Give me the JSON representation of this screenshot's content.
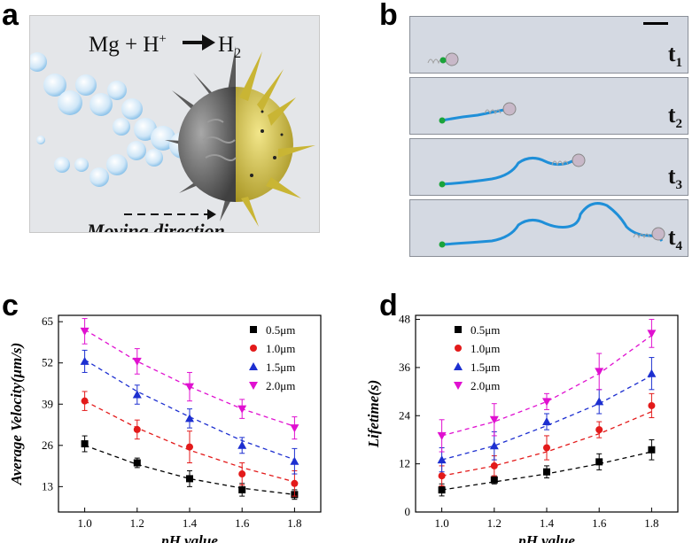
{
  "panel_letters": {
    "a": "a",
    "b": "b",
    "c": "c",
    "d": "d"
  },
  "panel_a": {
    "reaction": {
      "lhs": "Mg + H",
      "plus_sup": "+",
      "rhs": "H",
      "rhs_sub": "2"
    },
    "direction_label": "Moving direction"
  },
  "panel_b": {
    "frames": [
      {
        "label": "t",
        "sub": "1"
      },
      {
        "label": "t",
        "sub": "2"
      },
      {
        "label": "t",
        "sub": "3"
      },
      {
        "label": "t",
        "sub": "4"
      }
    ]
  },
  "colors": {
    "s05": "#000000",
    "s10": "#e31a1a",
    "s15": "#1d2fd0",
    "s20": "#e010d0",
    "track": "#1f8fd8",
    "start": "#1aa33a",
    "bubble": "#a8d4f0",
    "body_grey": "#6b6b6b",
    "body_gold": "#d8c84a"
  },
  "chart_data": [
    {
      "type": "scatter",
      "title": "",
      "xlabel": "pH value",
      "ylabel": "Average Velocity(μm/s)",
      "xlim": [
        0.9,
        1.9
      ],
      "ylim": [
        5,
        67
      ],
      "xticks": [
        1.0,
        1.2,
        1.4,
        1.6,
        1.8
      ],
      "yticks": [
        13,
        26,
        39,
        52,
        65
      ],
      "x": [
        1.0,
        1.2,
        1.4,
        1.6,
        1.8
      ],
      "series": [
        {
          "name": "0.5μm",
          "marker": "square",
          "values": [
            26.5,
            20.5,
            15.5,
            12.0,
            10.5
          ],
          "err": [
            2.5,
            1.5,
            2.5,
            2.0,
            1.5
          ],
          "fit": [
            26.0,
            20.0,
            15.5,
            12.5,
            10.5
          ]
        },
        {
          "name": "1.0μm",
          "marker": "circle",
          "values": [
            40.0,
            31.0,
            25.5,
            17.0,
            14.0
          ],
          "err": [
            3.0,
            3.0,
            5.0,
            3.5,
            4.0
          ],
          "fit": [
            40.0,
            31.5,
            24.5,
            19.0,
            14.5
          ]
        },
        {
          "name": "1.5μm",
          "marker": "triangle-up",
          "values": [
            52.5,
            42.0,
            34.5,
            26.0,
            21.0
          ],
          "err": [
            3.5,
            3.0,
            3.0,
            2.5,
            4.0
          ],
          "fit": [
            53.0,
            43.0,
            35.0,
            27.5,
            21.5
          ]
        },
        {
          "name": "2.0μm",
          "marker": "triangle-down",
          "values": [
            62.0,
            52.5,
            44.5,
            37.5,
            31.5
          ],
          "err": [
            4.0,
            4.0,
            4.5,
            3.0,
            3.5
          ],
          "fit": [
            62.5,
            52.5,
            44.5,
            37.5,
            32.0
          ]
        }
      ],
      "legend_position": "top-right"
    },
    {
      "type": "scatter",
      "title": "",
      "xlabel": "pH value",
      "ylabel": "Lifetime(s)",
      "xlim": [
        0.9,
        1.9
      ],
      "ylim": [
        0,
        49
      ],
      "xticks": [
        1.0,
        1.2,
        1.4,
        1.6,
        1.8
      ],
      "yticks": [
        0,
        12,
        24,
        36,
        48
      ],
      "x": [
        1.0,
        1.2,
        1.4,
        1.6,
        1.8
      ],
      "series": [
        {
          "name": "0.5μm",
          "marker": "square",
          "values": [
            5.5,
            8.0,
            10.0,
            12.5,
            15.5
          ],
          "err": [
            1.5,
            1.0,
            1.5,
            2.0,
            2.5
          ],
          "fit": [
            5.5,
            7.5,
            9.5,
            12.0,
            15.0
          ]
        },
        {
          "name": "1.0μm",
          "marker": "circle",
          "values": [
            9.0,
            11.5,
            16.0,
            20.5,
            26.5
          ],
          "err": [
            2.5,
            2.5,
            3.0,
            2.0,
            3.0
          ],
          "fit": [
            9.0,
            11.5,
            15.0,
            19.5,
            25.0
          ]
        },
        {
          "name": "1.5μm",
          "marker": "triangle-up",
          "values": [
            13.0,
            16.5,
            22.5,
            27.5,
            34.5
          ],
          "err": [
            3.0,
            3.5,
            2.0,
            3.0,
            4.0
          ],
          "fit": [
            13.0,
            16.5,
            21.5,
            27.0,
            34.0
          ]
        },
        {
          "name": "2.0μm",
          "marker": "triangle-down",
          "values": [
            19.0,
            23.0,
            27.5,
            35.0,
            44.5
          ],
          "err": [
            4.0,
            4.0,
            2.0,
            4.5,
            3.5
          ],
          "fit": [
            19.0,
            22.5,
            27.5,
            34.5,
            44.0
          ]
        }
      ],
      "legend_position": "top-left"
    }
  ]
}
